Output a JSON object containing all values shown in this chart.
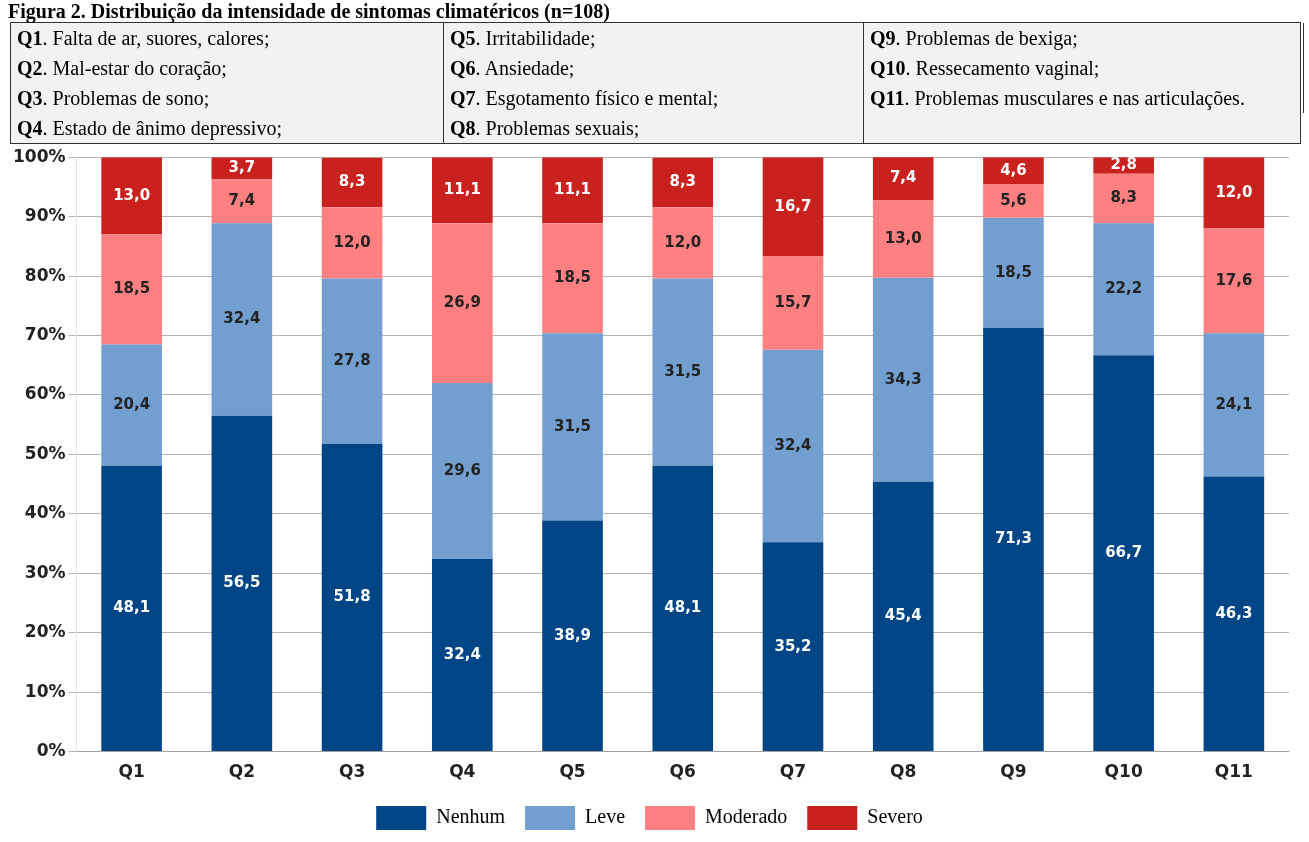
{
  "chart_data": {
    "type": "bar",
    "stacked": true,
    "title": "Figura 2. Distribuição da intensidade de sintomas climatéricos (n=108)",
    "annotations": [
      "Q1. Falta de ar, suores, calores;",
      "Q2. Mal-estar do coração;",
      "Q3. Problemas de sono;",
      "Q4. Estado de ânimo depressivo;",
      "Q5. Irritabilidade;",
      "Q6. Ansiedade;",
      "Q7. Esgotamento físico e mental;",
      "Q8. Problemas sexuais;",
      "Q9. Problemas de bexiga;",
      "Q10. Ressecamento vaginal;",
      "Q11. Problemas musculares e nas articulações."
    ],
    "categories": [
      "Q1",
      "Q2",
      "Q3",
      "Q4",
      "Q5",
      "Q6",
      "Q7",
      "Q8",
      "Q9",
      "Q10",
      "Q11"
    ],
    "series": [
      {
        "name": "Nenhum",
        "color": "#004586",
        "values": [
          48.1,
          56.5,
          51.8,
          32.4,
          38.9,
          48.1,
          35.2,
          45.4,
          71.3,
          66.7,
          46.3
        ],
        "value_labels": [
          "48,1",
          "56,5",
          "51,8",
          "32,4",
          "38,9",
          "48,1",
          "35,2",
          "45,4",
          "71,3",
          "66,7",
          "46,3"
        ]
      },
      {
        "name": "Leve",
        "color": "#729fcf",
        "values": [
          20.4,
          32.4,
          27.8,
          29.6,
          31.5,
          31.5,
          32.4,
          34.3,
          18.5,
          22.2,
          24.1
        ],
        "value_labels": [
          "20,4",
          "32,4",
          "27,8",
          "29,6",
          "31,5",
          "31,5",
          "32,4",
          "34,3",
          "18,5",
          "22,2",
          "24,1"
        ]
      },
      {
        "name": "Moderado",
        "color": "#ff8080",
        "values": [
          18.5,
          7.4,
          12.0,
          26.9,
          18.5,
          12.0,
          15.7,
          13.0,
          5.6,
          8.3,
          17.6
        ],
        "value_labels": [
          "18,5",
          "7,4",
          "12,0",
          "26,9",
          "18,5",
          "12,0",
          "15,7",
          "13,0",
          "5,6",
          "8,3",
          "17,6"
        ]
      },
      {
        "name": "Severo",
        "color": "#c9211e",
        "values": [
          13.0,
          3.7,
          8.3,
          11.1,
          11.1,
          8.3,
          16.7,
          7.4,
          4.6,
          2.8,
          12.0
        ],
        "value_labels": [
          "13,0",
          "3,7",
          "8,3",
          "11,1",
          "11,1",
          "8,3",
          "16,7",
          "7,4",
          "4,6",
          "2,8",
          "12,0"
        ]
      }
    ],
    "ylim": [
      0,
      100
    ],
    "yticks": [
      {
        "value": 0,
        "label": "0%"
      },
      {
        "value": 10,
        "label": "10%"
      },
      {
        "value": 20,
        "label": "20%"
      },
      {
        "value": 30,
        "label": "30%"
      },
      {
        "value": 40,
        "label": "40%"
      },
      {
        "value": 50,
        "label": "50%"
      },
      {
        "value": 60,
        "label": "60%"
      },
      {
        "value": 70,
        "label": "70%"
      },
      {
        "value": 80,
        "label": "80%"
      },
      {
        "value": 90,
        "label": "90%"
      },
      {
        "value": 100,
        "label": "100%"
      }
    ],
    "grid": "y",
    "legend": "bottom"
  }
}
